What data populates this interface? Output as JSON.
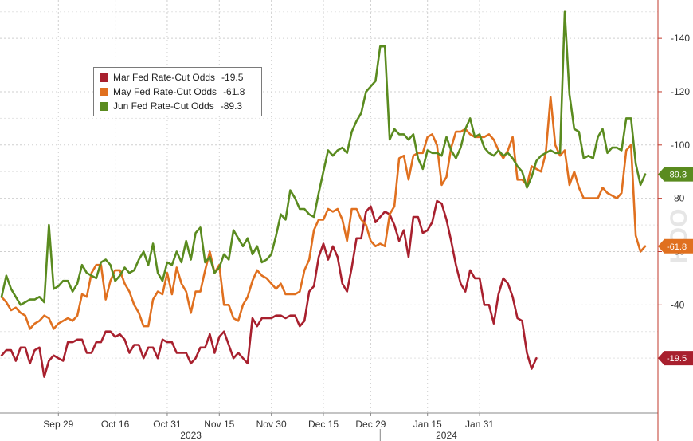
{
  "chart_data": {
    "type": "line",
    "x_labels": [
      "Sep 29",
      "Oct 16",
      "Oct 31",
      "Nov 15",
      "Nov 30",
      "Dec 15",
      "Dec 29",
      "Jan 15",
      "Jan 31"
    ],
    "x_tick_index": [
      12,
      24,
      35,
      46,
      57,
      68,
      78,
      90,
      101
    ],
    "year_labels": [
      {
        "label": "2023",
        "index": 40
      },
      {
        "label": "2024",
        "index": 94
      }
    ],
    "year_divider_index": 80,
    "y_ticks": [
      40,
      60,
      80,
      100,
      120,
      140
    ],
    "ylim": [
      0,
      155
    ],
    "y_axis_side": "right",
    "y_axis_inverted": false,
    "grid": true,
    "legend_position": "top-left",
    "watermark": "HOO",
    "series": [
      {
        "name": "Mar Fed Rate-Cut Odds",
        "legend_value": "-19.5",
        "tag": "-19.5",
        "color": "#a8202e",
        "values": [
          21,
          23,
          23,
          19,
          24,
          24,
          18,
          23,
          24,
          13,
          19,
          21,
          20,
          19,
          26,
          26,
          27,
          27,
          22,
          22,
          26,
          26,
          30,
          30,
          28,
          29,
          27,
          22,
          25,
          25,
          20,
          24,
          24,
          20,
          27,
          26,
          26,
          22,
          22,
          22,
          18,
          20,
          24,
          24,
          29,
          22,
          28,
          30,
          25,
          20,
          22,
          20,
          18,
          35,
          32,
          35,
          35,
          35,
          36,
          36,
          35,
          36,
          36,
          32,
          34,
          45,
          47,
          58,
          63,
          57,
          62,
          58,
          48,
          45,
          54,
          65,
          65,
          75,
          77,
          71,
          73,
          75,
          74,
          70,
          64,
          68,
          58,
          73,
          73,
          67,
          68,
          71,
          79,
          78,
          72,
          64,
          55,
          48,
          45,
          53,
          50,
          50,
          40,
          40,
          33,
          44,
          50,
          48,
          43,
          35,
          34,
          22,
          16,
          20
        ]
      },
      {
        "name": "May Fed Rate-Cut Odds",
        "legend_value": "-61.8",
        "tag": "-61.8",
        "color": "#e0701f",
        "values": [
          43,
          41,
          38,
          39,
          37,
          36,
          31,
          33,
          34,
          36,
          35,
          31,
          33,
          34,
          35,
          34,
          36,
          44,
          43,
          52,
          55,
          55,
          42,
          49,
          53,
          53,
          48,
          45,
          40,
          37,
          32,
          32,
          42,
          45,
          44,
          52,
          44,
          54,
          48,
          45,
          37,
          45,
          45,
          53,
          60,
          52,
          55,
          40,
          40,
          35,
          34,
          40,
          43,
          49,
          53,
          51,
          50,
          48,
          46,
          48,
          44,
          44,
          44,
          45,
          53,
          57,
          68,
          72,
          72,
          76,
          75,
          76,
          72,
          64,
          76,
          76,
          72,
          70,
          64,
          62,
          63,
          62,
          74,
          77,
          95,
          96,
          87,
          96,
          97,
          97,
          103,
          104,
          100,
          85,
          88,
          99,
          105,
          105,
          106,
          104,
          103,
          103,
          103,
          104,
          102,
          98,
          95,
          98,
          103,
          87,
          87,
          85,
          92,
          91,
          90,
          97,
          118,
          100,
          96,
          98,
          85,
          90,
          84,
          80,
          80,
          80,
          80,
          84,
          82,
          81,
          80,
          82,
          98,
          100,
          66,
          60,
          62
        ]
      },
      {
        "name": "Jun Fed Rate-Cut Odds",
        "legend_value": "-89.3",
        "tag": "-89.3",
        "color": "#5a8b1f",
        "values": [
          43,
          51,
          46,
          43,
          40,
          41,
          42,
          42,
          43,
          41,
          70,
          46,
          47,
          49,
          49,
          45,
          48,
          55,
          52,
          51,
          50,
          56,
          57,
          55,
          49,
          51,
          54,
          52,
          53,
          57,
          60,
          55,
          63,
          52,
          49,
          56,
          55,
          60,
          56,
          64,
          57,
          67,
          69,
          56,
          58,
          52,
          54,
          59,
          57,
          68,
          65,
          62,
          65,
          59,
          62,
          56,
          57,
          59,
          66,
          74,
          72,
          83,
          80,
          76,
          76,
          74,
          73,
          82,
          90,
          98,
          96,
          98,
          99,
          97,
          105,
          109,
          112,
          120,
          122,
          124,
          137,
          137,
          102,
          106,
          104,
          104,
          102,
          104,
          95,
          91,
          98,
          97,
          97,
          96,
          103,
          98,
          95,
          99,
          106,
          110,
          103,
          104,
          99,
          97,
          96,
          98,
          96,
          97,
          95,
          92,
          90,
          84,
          88,
          94,
          96,
          97,
          98,
          97,
          97,
          150,
          119,
          106,
          105,
          95,
          96,
          95,
          103,
          106,
          97,
          99,
          99,
          98,
          110,
          110,
          93,
          85,
          89
        ]
      }
    ]
  }
}
